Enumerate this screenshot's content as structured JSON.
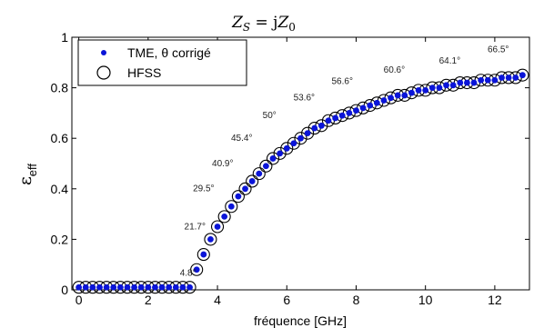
{
  "chart_data": {
    "type": "scatter",
    "title": "Z_S = jZ_0",
    "title_parts": {
      "z": "Z",
      "s": "S",
      "eq": " = j",
      "z2": "Z",
      "zero": "0"
    },
    "xlabel": "fréquence [GHz]",
    "ylabel": "ε",
    "ylabel_sub": "eff",
    "xlim": [
      -0.2,
      13.0
    ],
    "ylim": [
      0,
      1
    ],
    "xticks": [
      0,
      2,
      4,
      6,
      8,
      10,
      12
    ],
    "xtick_labels": [
      "0",
      "2",
      "4",
      "6",
      "8",
      "10",
      "12"
    ],
    "yticks": [
      0,
      0.2,
      0.4,
      0.6,
      0.8,
      1
    ],
    "ytick_labels": [
      "0",
      "0.2",
      "0.4",
      "0.6",
      "0.8",
      "1"
    ],
    "grid": false,
    "legend_position": "top-left",
    "colors": {
      "tme": "#0a14d8",
      "hfss": "#000000"
    },
    "series": [
      {
        "name": "TME,  θ  corrigé",
        "marker": "filled-dot",
        "x": [
          0.0,
          0.2,
          0.4,
          0.6,
          0.8,
          1.0,
          1.2,
          1.4,
          1.6,
          1.8,
          2.0,
          2.2,
          2.4,
          2.6,
          2.8,
          3.0,
          3.2,
          3.4,
          3.6,
          3.8,
          4.0,
          4.2,
          4.4,
          4.6,
          4.8,
          5.0,
          5.2,
          5.4,
          5.6,
          5.8,
          6.0,
          6.2,
          6.4,
          6.6,
          6.8,
          7.0,
          7.2,
          7.4,
          7.6,
          7.8,
          8.0,
          8.2,
          8.4,
          8.6,
          8.8,
          9.0,
          9.2,
          9.4,
          9.6,
          9.8,
          10.0,
          10.2,
          10.4,
          10.6,
          10.8,
          11.0,
          11.2,
          11.4,
          11.6,
          11.8,
          12.0,
          12.2,
          12.4,
          12.6,
          12.8
        ],
        "y": [
          0.01,
          0.01,
          0.01,
          0.01,
          0.01,
          0.01,
          0.01,
          0.01,
          0.01,
          0.01,
          0.01,
          0.01,
          0.01,
          0.01,
          0.01,
          0.01,
          0.01,
          0.08,
          0.14,
          0.2,
          0.25,
          0.29,
          0.33,
          0.37,
          0.4,
          0.43,
          0.46,
          0.49,
          0.52,
          0.54,
          0.56,
          0.58,
          0.6,
          0.62,
          0.64,
          0.65,
          0.67,
          0.68,
          0.69,
          0.7,
          0.71,
          0.72,
          0.73,
          0.74,
          0.75,
          0.76,
          0.77,
          0.77,
          0.78,
          0.79,
          0.79,
          0.8,
          0.8,
          0.81,
          0.81,
          0.82,
          0.82,
          0.82,
          0.83,
          0.83,
          0.83,
          0.84,
          0.84,
          0.84,
          0.85
        ]
      },
      {
        "name": "HFSS",
        "marker": "open-circle",
        "x": [
          0.0,
          0.2,
          0.4,
          0.6,
          0.8,
          1.0,
          1.2,
          1.4,
          1.6,
          1.8,
          2.0,
          2.2,
          2.4,
          2.6,
          2.8,
          3.0,
          3.2,
          3.4,
          3.6,
          3.8,
          4.0,
          4.2,
          4.4,
          4.6,
          4.8,
          5.0,
          5.2,
          5.4,
          5.6,
          5.8,
          6.0,
          6.2,
          6.4,
          6.6,
          6.8,
          7.0,
          7.2,
          7.4,
          7.6,
          7.8,
          8.0,
          8.2,
          8.4,
          8.6,
          8.8,
          9.0,
          9.2,
          9.4,
          9.6,
          9.8,
          10.0,
          10.2,
          10.4,
          10.6,
          10.8,
          11.0,
          11.2,
          11.4,
          11.6,
          11.8,
          12.0,
          12.2,
          12.4,
          12.6,
          12.8
        ],
        "y": [
          0.01,
          0.01,
          0.01,
          0.01,
          0.01,
          0.01,
          0.01,
          0.01,
          0.01,
          0.01,
          0.01,
          0.01,
          0.01,
          0.01,
          0.01,
          0.01,
          0.01,
          0.08,
          0.14,
          0.2,
          0.25,
          0.29,
          0.33,
          0.37,
          0.4,
          0.43,
          0.46,
          0.49,
          0.52,
          0.54,
          0.56,
          0.58,
          0.6,
          0.62,
          0.64,
          0.65,
          0.67,
          0.68,
          0.69,
          0.7,
          0.71,
          0.72,
          0.73,
          0.74,
          0.75,
          0.76,
          0.77,
          0.77,
          0.78,
          0.79,
          0.79,
          0.8,
          0.8,
          0.81,
          0.81,
          0.82,
          0.82,
          0.82,
          0.83,
          0.83,
          0.83,
          0.84,
          0.84,
          0.84,
          0.85
        ]
      }
    ],
    "annotations": [
      {
        "text": "4.8°",
        "x": 3.15,
        "y": 0.055
      },
      {
        "text": "21.7°",
        "x": 3.35,
        "y": 0.24
      },
      {
        "text": "29.5°",
        "x": 3.6,
        "y": 0.39
      },
      {
        "text": "40.9°",
        "x": 4.15,
        "y": 0.49
      },
      {
        "text": "45.4°",
        "x": 4.7,
        "y": 0.59
      },
      {
        "text": "50°",
        "x": 5.5,
        "y": 0.68
      },
      {
        "text": "53.6°",
        "x": 6.5,
        "y": 0.75
      },
      {
        "text": "56.6°",
        "x": 7.6,
        "y": 0.815
      },
      {
        "text": "60.6°",
        "x": 9.1,
        "y": 0.86
      },
      {
        "text": "64.1°",
        "x": 10.7,
        "y": 0.895
      },
      {
        "text": "66.5°",
        "x": 12.1,
        "y": 0.94
      }
    ]
  }
}
